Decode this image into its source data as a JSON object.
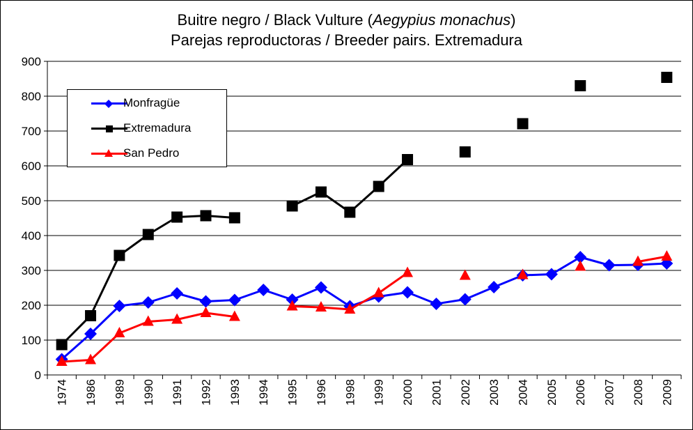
{
  "title": {
    "line1_prefix": "Buitre negro / Black Vulture (",
    "line1_italic": "Aegypius monachus",
    "line1_suffix": ")",
    "line2": "Parejas reproductoras / Breeder pairs. Extremadura"
  },
  "chart_data": {
    "type": "line",
    "categories": [
      "1974",
      "1986",
      "1989",
      "1990",
      "1991",
      "1992",
      "1993",
      "1994",
      "1995",
      "1996",
      "1998",
      "1999",
      "2000",
      "2001",
      "2002",
      "2003",
      "2004",
      "2005",
      "2006",
      "2007",
      "2008",
      "2009"
    ],
    "ylim": [
      0,
      900
    ],
    "yticks": [
      0,
      100,
      200,
      300,
      400,
      500,
      600,
      700,
      800,
      900
    ],
    "grid": true,
    "legend_position": "top-left",
    "series": [
      {
        "name": "Monfragüe",
        "color": "#0000ff",
        "marker": "diamond",
        "values": [
          45,
          118,
          198,
          208,
          234,
          211,
          215,
          244,
          216,
          251,
          197,
          225,
          237,
          204,
          217,
          252,
          286,
          289,
          338,
          315,
          316,
          320
        ]
      },
      {
        "name": "Extremadura",
        "color": "#000000",
        "marker": "square",
        "values": [
          87,
          170,
          343,
          403,
          453,
          457,
          451,
          null,
          485,
          525,
          467,
          541,
          618,
          null,
          640,
          null,
          721,
          null,
          830,
          null,
          null,
          854
        ]
      },
      {
        "name": "San Pedro",
        "color": "#ff0000",
        "marker": "triangle",
        "values": [
          38,
          43,
          120,
          153,
          159,
          178,
          167,
          null,
          197,
          194,
          188,
          235,
          293,
          null,
          285,
          null,
          287,
          null,
          311,
          null,
          325,
          340
        ]
      }
    ]
  }
}
